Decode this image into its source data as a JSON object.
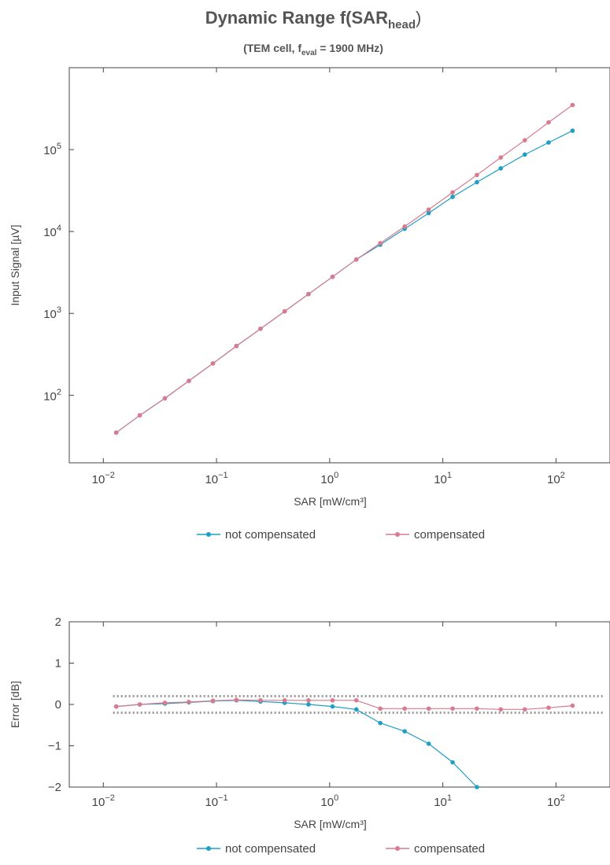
{
  "header": {
    "title_main": "Dynamic Range f(SAR",
    "title_sub": "head",
    "title_close": ")",
    "subtitle_pre": "(TEM cell, f",
    "subtitle_sub": "eval",
    "subtitle_post": " = 1900 MHz)"
  },
  "colors": {
    "not_compensated": "#1f9fc4",
    "compensated": "#d97a8e",
    "tolerance": "#9a9a9a",
    "axis": "#444444"
  },
  "chart_data": [
    {
      "type": "line",
      "xscale": "log",
      "yscale": "log",
      "xlabel": "SAR [mW/cm³]",
      "ylabel": "Input Signal [µV]",
      "xlim": [
        0.005,
        300
      ],
      "ylim": [
        15,
        1000000
      ],
      "xticks": [
        {
          "v": 0.01,
          "base": "10",
          "exp": "−2"
        },
        {
          "v": 0.1,
          "base": "10",
          "exp": "−1"
        },
        {
          "v": 1,
          "base": "10",
          "exp": "0"
        },
        {
          "v": 10,
          "base": "10",
          "exp": "1"
        },
        {
          "v": 100,
          "base": "10",
          "exp": "2"
        }
      ],
      "yticks": [
        {
          "v": 100,
          "base": "10",
          "exp": "2"
        },
        {
          "v": 1000,
          "base": "10",
          "exp": "3"
        },
        {
          "v": 10000,
          "base": "10",
          "exp": "4"
        },
        {
          "v": 100000,
          "base": "10",
          "exp": "5"
        }
      ],
      "grid": false,
      "legend_position": "bottom",
      "series": [
        {
          "name": "not compensated",
          "x": [
            0.013,
            0.021,
            0.035,
            0.057,
            0.093,
            0.15,
            0.245,
            0.4,
            0.65,
            1.06,
            1.72,
            2.8,
            4.6,
            7.5,
            12.2,
            20,
            32.5,
            53,
            86,
            140
          ],
          "y": [
            35,
            57,
            92,
            150,
            245,
            400,
            650,
            1060,
            1720,
            2800,
            4550,
            6900,
            10800,
            16800,
            26500,
            40000,
            59000,
            87000,
            122000,
            170000
          ]
        },
        {
          "name": "compensated",
          "x": [
            0.013,
            0.021,
            0.035,
            0.057,
            0.093,
            0.15,
            0.245,
            0.4,
            0.65,
            1.06,
            1.72,
            2.8,
            4.6,
            7.5,
            12.2,
            20,
            32.5,
            53,
            86,
            140
          ],
          "y": [
            35,
            57,
            92,
            150,
            245,
            400,
            650,
            1060,
            1720,
            2800,
            4550,
            7200,
            11500,
            18500,
            30000,
            49000,
            80000,
            130000,
            215000,
            350000
          ]
        }
      ]
    },
    {
      "type": "line",
      "xscale": "log",
      "yscale": "linear",
      "xlabel": "SAR [mW/cm³]",
      "ylabel": "Error [dB]",
      "xlim": [
        0.005,
        300
      ],
      "ylim": [
        -2,
        2
      ],
      "xticks": [
        {
          "v": 0.01,
          "base": "10",
          "exp": "−2"
        },
        {
          "v": 0.1,
          "base": "10",
          "exp": "−1"
        },
        {
          "v": 1,
          "base": "10",
          "exp": "0"
        },
        {
          "v": 10,
          "base": "10",
          "exp": "1"
        },
        {
          "v": 100,
          "base": "10",
          "exp": "2"
        }
      ],
      "yticks": [
        {
          "v": 2,
          "label": "2"
        },
        {
          "v": 1,
          "label": "1"
        },
        {
          "v": 0,
          "label": "0"
        },
        {
          "v": -1,
          "label": "−1"
        },
        {
          "v": -2,
          "label": "−2"
        }
      ],
      "grid": false,
      "legend_position": "bottom",
      "series": [
        {
          "name": "not compensated",
          "x": [
            0.013,
            0.021,
            0.035,
            0.057,
            0.093,
            0.15,
            0.245,
            0.4,
            0.65,
            1.06,
            1.72,
            2.8,
            4.6,
            7.5,
            12.2,
            20
          ],
          "y": [
            -0.05,
            0.0,
            0.02,
            0.05,
            0.08,
            0.1,
            0.07,
            0.04,
            0.0,
            -0.05,
            -0.12,
            -0.45,
            -0.65,
            -0.95,
            -1.4,
            -2.0
          ]
        },
        {
          "name": "compensated",
          "x": [
            0.013,
            0.021,
            0.035,
            0.057,
            0.093,
            0.15,
            0.245,
            0.4,
            0.65,
            1.06,
            1.72,
            2.8,
            4.6,
            7.5,
            12.2,
            20,
            32.5,
            53,
            86,
            140
          ],
          "y": [
            -0.05,
            0.0,
            0.04,
            0.06,
            0.09,
            0.11,
            0.1,
            0.1,
            0.1,
            0.1,
            0.1,
            -0.1,
            -0.1,
            -0.1,
            -0.1,
            -0.1,
            -0.12,
            -0.12,
            -0.08,
            -0.03
          ]
        }
      ],
      "tolerance_band": [
        -0.2,
        0.2
      ]
    }
  ]
}
